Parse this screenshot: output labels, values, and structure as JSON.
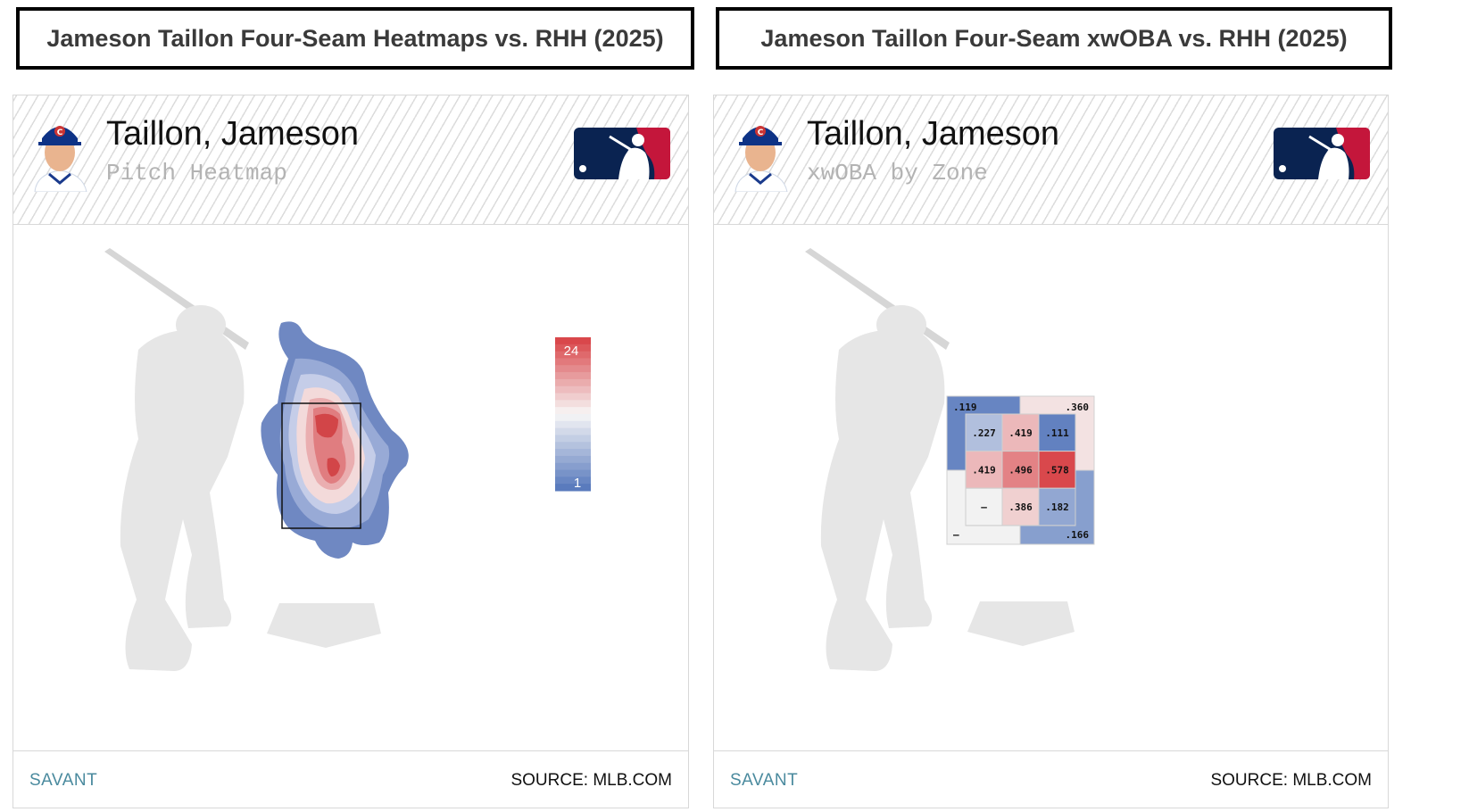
{
  "left": {
    "title": "Jameson Taillon Four-Seam Heatmaps vs. RHH (2025)",
    "player_name": "Taillon, Jameson",
    "subtitle": "Pitch Heatmap",
    "footer_brand": "SAVANT",
    "footer_source": "SOURCE: MLB.COM"
  },
  "right": {
    "title": "Jameson Taillon Four-Seam xwOBA vs. RHH (2025)",
    "player_name": "Taillon, Jameson",
    "subtitle": "xwOBA by Zone",
    "footer_brand": "SAVANT",
    "footer_source": "SOURCE: MLB.COM"
  },
  "colors": {
    "scale_high": "#d9474b",
    "scale_mid": "#f7f7f7",
    "scale_low": "#5a7bbd",
    "silhouette": "#e6e6e6",
    "savant": "#4a8a9e"
  },
  "icons": [
    "player-headshot-icon",
    "mlb-logo-icon",
    "batter-silhouette-icon",
    "home-plate-icon"
  ],
  "chart_data": [
    {
      "type": "heatmap",
      "title": "Pitch Heatmap",
      "scale_min": 1,
      "scale_max": 24,
      "scale_labels": [
        "24",
        "1"
      ],
      "description_of_density": "concentrated in upper-middle of strike zone"
    },
    {
      "type": "table",
      "title": "xwOBA by Zone",
      "inner_zones": [
        [
          ".227",
          ".419",
          ".111"
        ],
        [
          ".419",
          ".496",
          ".578"
        ],
        [
          "–",
          ".386",
          ".182"
        ]
      ],
      "outer_zones": {
        "top_left": ".119",
        "top_right": ".360",
        "bottom_left": "–",
        "bottom_right": ".166"
      },
      "inner_values": [
        [
          0.227,
          0.419,
          0.111
        ],
        [
          0.419,
          0.496,
          0.578
        ],
        [
          null,
          0.386,
          0.182
        ]
      ],
      "outer_values": {
        "top_left": 0.119,
        "top_right": 0.36,
        "bottom_left": null,
        "bottom_right": 0.166
      }
    }
  ]
}
